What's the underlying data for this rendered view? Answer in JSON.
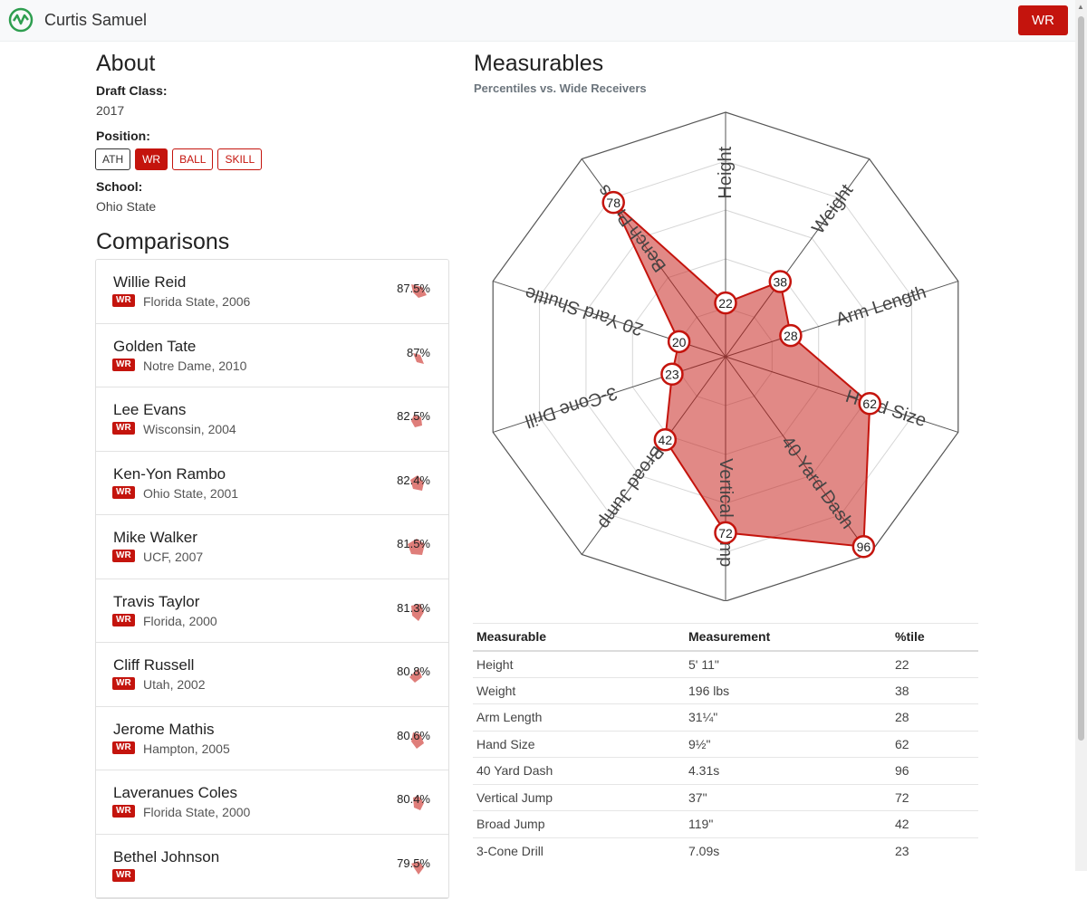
{
  "header": {
    "title": "Curtis Samuel",
    "position_button": "WR",
    "accent": "#c4140d"
  },
  "about": {
    "title": "About",
    "draft_class_label": "Draft Class:",
    "draft_class": "2017",
    "position_label": "Position:",
    "positions": [
      "ATH",
      "WR",
      "BALL",
      "SKILL"
    ],
    "active_position": "WR",
    "school_label": "School:",
    "school": "Ohio State"
  },
  "comparisons": {
    "title": "Comparisons",
    "items": [
      {
        "name": "Willie Reid",
        "pos": "WR",
        "detail": "Florida State, 2006",
        "pct": "87.5%"
      },
      {
        "name": "Golden Tate",
        "pos": "WR",
        "detail": "Notre Dame, 2010",
        "pct": "87%"
      },
      {
        "name": "Lee Evans",
        "pos": "WR",
        "detail": "Wisconsin, 2004",
        "pct": "82.5%"
      },
      {
        "name": "Ken-Yon Rambo",
        "pos": "WR",
        "detail": "Ohio State, 2001",
        "pct": "82.4%"
      },
      {
        "name": "Mike Walker",
        "pos": "WR",
        "detail": "UCF, 2007",
        "pct": "81.5%"
      },
      {
        "name": "Travis Taylor",
        "pos": "WR",
        "detail": "Florida, 2000",
        "pct": "81.3%"
      },
      {
        "name": "Cliff Russell",
        "pos": "WR",
        "detail": "Utah, 2002",
        "pct": "80.8%"
      },
      {
        "name": "Jerome Mathis",
        "pos": "WR",
        "detail": "Hampton, 2005",
        "pct": "80.6%"
      },
      {
        "name": "Laveranues Coles",
        "pos": "WR",
        "detail": "Florida State, 2000",
        "pct": "80.4%"
      },
      {
        "name": "Bethel Johnson",
        "pos": "WR",
        "detail": "",
        "pct": "79.5%"
      }
    ]
  },
  "measurables": {
    "title": "Measurables",
    "subtitle": "Percentiles vs. Wide Receivers",
    "table_headers": [
      "Measurable",
      "Measurement",
      "%tile"
    ],
    "rows": [
      {
        "name": "Height",
        "measurement": "5' 11\"",
        "pct": "22"
      },
      {
        "name": "Weight",
        "measurement": "196 lbs",
        "pct": "38"
      },
      {
        "name": "Arm Length",
        "measurement": "31¼\"",
        "pct": "28"
      },
      {
        "name": "Hand Size",
        "measurement": "9½\"",
        "pct": "62"
      },
      {
        "name": "40 Yard Dash",
        "measurement": "4.31s",
        "pct": "96"
      },
      {
        "name": "Vertical Jump",
        "measurement": "37\"",
        "pct": "72"
      },
      {
        "name": "Broad Jump",
        "measurement": "119\"",
        "pct": "42"
      },
      {
        "name": "3-Cone Drill",
        "measurement": "7.09s",
        "pct": "23"
      }
    ]
  },
  "chart_data": {
    "type": "radar",
    "categories": [
      "Height",
      "Weight",
      "Arm Length",
      "Hand Size",
      "40 Yard Dash",
      "Vertical Jump",
      "Broad Jump",
      "3-Cone Drill",
      "20 Yard Shuttle",
      "Bench Press"
    ],
    "values": [
      22,
      38,
      28,
      62,
      96,
      72,
      42,
      23,
      20,
      78
    ],
    "range": [
      0,
      100
    ],
    "fill_color": "#c4140d",
    "grid": true
  }
}
